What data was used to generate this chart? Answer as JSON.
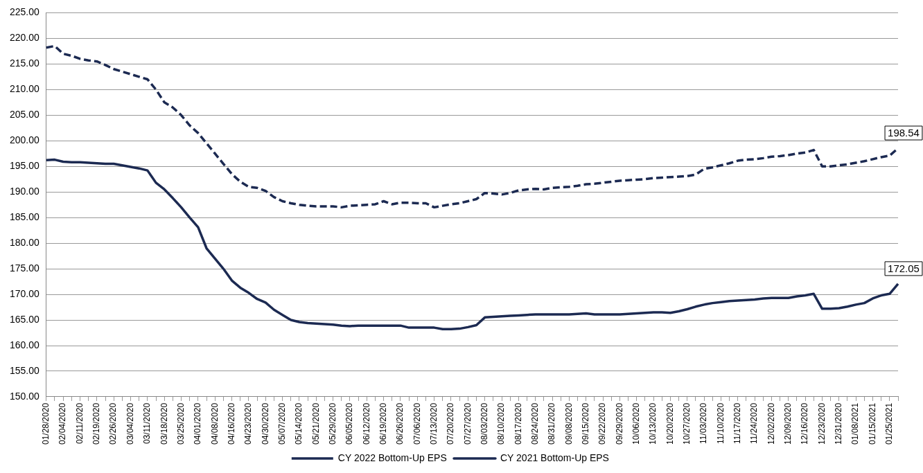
{
  "chart_data": {
    "type": "line",
    "categories": [
      "01/28/2020",
      null,
      "02/04/2020",
      null,
      "02/11/2020",
      null,
      "02/19/2020",
      null,
      "02/26/2020",
      null,
      "03/04/2020",
      null,
      "03/11/2020",
      null,
      "03/18/2020",
      null,
      "03/25/2020",
      null,
      "04/01/2020",
      null,
      "04/08/2020",
      null,
      "04/16/2020",
      null,
      "04/23/2020",
      null,
      "04/30/2020",
      null,
      "05/07/2020",
      null,
      "05/14/2020",
      null,
      "05/21/2020",
      null,
      "05/29/2020",
      null,
      "06/05/2020",
      null,
      "06/12/2020",
      null,
      "06/19/2020",
      null,
      "06/26/2020",
      null,
      "07/06/2020",
      null,
      "07/13/2020",
      null,
      "07/20/2020",
      null,
      "07/27/2020",
      null,
      "08/03/2020",
      null,
      "08/10/2020",
      null,
      "08/17/2020",
      null,
      "08/24/2020",
      null,
      "08/31/2020",
      null,
      "09/08/2020",
      null,
      "09/15/2020",
      null,
      "09/22/2020",
      null,
      "09/29/2020",
      null,
      "10/06/2020",
      null,
      "10/13/2020",
      null,
      "10/20/2020",
      null,
      "10/27/2020",
      null,
      "11/03/2020",
      null,
      "11/10/2020",
      null,
      "11/17/2020",
      null,
      "11/24/2020",
      null,
      "12/02/2020",
      null,
      "12/09/2020",
      null,
      "12/16/2020",
      null,
      "12/23/2020",
      null,
      "12/31/2020",
      null,
      "01/08/2021",
      null,
      "01/15/2021",
      null,
      "01/25/2021",
      null
    ],
    "series": [
      {
        "name": "CY 2022 Bottom-Up EPS",
        "color": "#1c2a52",
        "line_style": "dashed",
        "values": [
          218.2,
          218.5,
          217.0,
          216.6,
          216.0,
          215.7,
          215.5,
          214.8,
          214.0,
          213.5,
          213.0,
          212.5,
          212.0,
          210.0,
          207.5,
          206.5,
          205.0,
          203.0,
          201.5,
          199.5,
          197.5,
          195.5,
          193.5,
          192.0,
          191.0,
          190.8,
          190.2,
          189.0,
          188.2,
          187.8,
          187.5,
          187.3,
          187.2,
          187.2,
          187.2,
          187.0,
          187.3,
          187.4,
          187.5,
          187.6,
          188.2,
          187.6,
          187.9,
          187.9,
          187.8,
          187.8,
          187.0,
          187.3,
          187.6,
          187.8,
          188.2,
          188.6,
          189.8,
          189.7,
          189.5,
          189.8,
          190.3,
          190.5,
          190.6,
          190.5,
          190.8,
          190.9,
          191.0,
          191.2,
          191.5,
          191.6,
          191.8,
          192.0,
          192.2,
          192.3,
          192.4,
          192.5,
          192.7,
          192.8,
          192.9,
          193.0,
          193.1,
          193.4,
          194.5,
          194.8,
          195.2,
          195.6,
          196.1,
          196.3,
          196.4,
          196.6,
          196.9,
          197.0,
          197.2,
          197.5,
          197.7,
          198.2,
          195.0,
          195.0,
          195.2,
          195.4,
          195.7,
          196.0,
          196.4,
          196.8,
          197.1,
          198.54
        ],
        "value_labels": [
          null,
          null,
          null,
          null,
          null,
          null,
          null,
          null,
          null,
          null,
          null,
          null,
          null,
          null,
          null,
          null,
          null,
          null,
          null,
          null,
          null,
          null,
          null,
          null,
          null,
          null,
          null,
          null,
          null,
          null,
          null,
          null,
          null,
          null,
          null,
          null,
          null,
          null,
          null,
          null,
          null,
          null,
          null,
          null,
          null,
          null,
          null,
          null,
          null,
          null,
          null,
          null,
          null,
          null,
          null,
          null,
          null,
          null,
          null,
          null,
          null,
          null,
          null,
          null,
          null,
          null,
          null,
          null,
          null,
          null,
          null,
          null,
          null,
          null,
          null,
          null,
          null,
          null,
          null,
          null,
          null,
          null,
          null,
          null,
          null,
          null,
          null,
          null,
          null,
          null,
          null,
          null,
          null,
          null,
          null,
          null,
          null,
          null,
          null,
          null,
          null,
          "198.54"
        ]
      },
      {
        "name": "CY 2021 Bottom-Up EPS",
        "color": "#1c2a52",
        "line_style": "solid",
        "values": [
          196.2,
          196.3,
          195.9,
          195.8,
          195.8,
          195.7,
          195.6,
          195.5,
          195.5,
          195.2,
          194.9,
          194.6,
          194.2,
          191.8,
          190.5,
          188.8,
          187.0,
          185.0,
          183.1,
          179.0,
          177.0,
          175.0,
          172.7,
          171.3,
          170.3,
          169.1,
          168.4,
          167.0,
          166.0,
          165.0,
          164.6,
          164.4,
          164.3,
          164.2,
          164.1,
          163.9,
          163.8,
          163.9,
          163.9,
          163.9,
          163.9,
          163.9,
          163.9,
          163.5,
          163.5,
          163.5,
          163.5,
          163.2,
          163.2,
          163.3,
          163.6,
          164.0,
          165.5,
          165.6,
          165.7,
          165.8,
          165.9,
          166.0,
          166.1,
          166.1,
          166.1,
          166.1,
          166.1,
          166.2,
          166.3,
          166.1,
          166.1,
          166.1,
          166.1,
          166.2,
          166.3,
          166.4,
          166.5,
          166.5,
          166.4,
          166.7,
          167.1,
          167.6,
          168.0,
          168.3,
          168.5,
          168.7,
          168.8,
          168.9,
          169.0,
          169.2,
          169.3,
          169.3,
          169.3,
          169.6,
          169.8,
          170.1,
          167.2,
          167.2,
          167.3,
          167.6,
          168.0,
          168.3,
          169.2,
          169.8,
          170.1,
          172.05
        ],
        "value_labels": [
          null,
          null,
          null,
          null,
          null,
          null,
          null,
          null,
          null,
          null,
          null,
          null,
          null,
          null,
          null,
          null,
          null,
          null,
          null,
          null,
          null,
          null,
          null,
          null,
          null,
          null,
          null,
          null,
          null,
          null,
          null,
          null,
          null,
          null,
          null,
          null,
          null,
          null,
          null,
          null,
          null,
          null,
          null,
          null,
          null,
          null,
          null,
          null,
          null,
          null,
          null,
          null,
          null,
          null,
          null,
          null,
          null,
          null,
          null,
          null,
          null,
          null,
          null,
          null,
          null,
          null,
          null,
          null,
          null,
          null,
          null,
          null,
          null,
          null,
          null,
          null,
          null,
          null,
          null,
          null,
          null,
          null,
          null,
          null,
          null,
          null,
          null,
          null,
          null,
          null,
          null,
          null,
          null,
          null,
          null,
          null,
          null,
          null,
          null,
          null,
          null,
          "172.05"
        ]
      }
    ],
    "ylim": [
      150,
      225
    ],
    "yticks": [
      {
        "value": 150,
        "label": "150.00"
      },
      {
        "value": 155,
        "label": "155.00"
      },
      {
        "value": 160,
        "label": "160.00"
      },
      {
        "value": 165,
        "label": "165.00"
      },
      {
        "value": 170,
        "label": "170.00"
      },
      {
        "value": 175,
        "label": "175.00"
      },
      {
        "value": 180,
        "label": "180.00"
      },
      {
        "value": 185,
        "label": "185.00"
      },
      {
        "value": 190,
        "label": "190.00"
      },
      {
        "value": 195,
        "label": "195.00"
      },
      {
        "value": 200,
        "label": "200.00"
      },
      {
        "value": 205,
        "label": "205.00"
      },
      {
        "value": 210,
        "label": "210.00"
      },
      {
        "value": 215,
        "label": "215.00"
      },
      {
        "value": 220,
        "label": "220.00"
      },
      {
        "value": 225,
        "label": "225.00"
      }
    ],
    "grid": "y",
    "legend": "bottom",
    "marker": "none"
  }
}
